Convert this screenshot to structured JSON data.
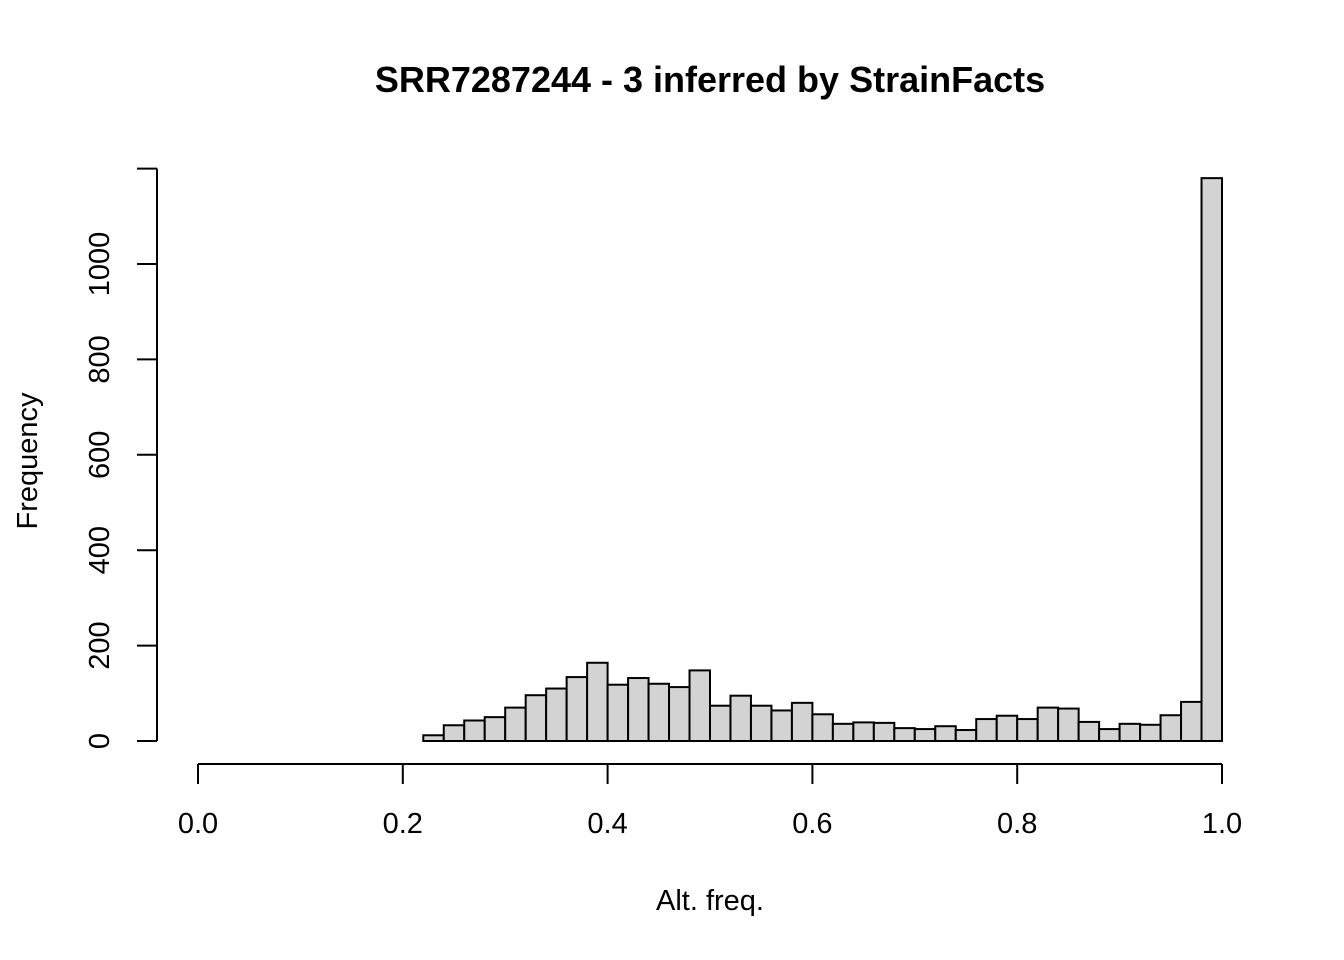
{
  "chart_data": {
    "type": "bar",
    "title": "SRR7287244 - 3 inferred by StrainFacts",
    "xlabel": "Alt. freq.",
    "ylabel": "Frequency",
    "xlim": [
      0,
      1
    ],
    "ylim": [
      0,
      1200
    ],
    "x_ticks": [
      "0.0",
      "0.2",
      "0.4",
      "0.6",
      "0.8",
      "1.0"
    ],
    "y_ticks": [
      "0",
      "200",
      "400",
      "600",
      "800",
      "1000"
    ],
    "bin_width": 0.02,
    "bin_start": 0.22,
    "values": [
      12,
      33,
      43,
      50,
      70,
      96,
      110,
      134,
      164,
      118,
      132,
      120,
      113,
      148,
      74,
      95,
      74,
      64,
      80,
      56,
      36,
      39,
      38,
      27,
      25,
      31,
      23,
      46,
      53,
      46,
      70,
      68,
      40,
      25,
      36,
      34,
      54,
      82,
      1180
    ],
    "bar_color": "#d3d3d3",
    "grid": false,
    "legend": "none"
  }
}
